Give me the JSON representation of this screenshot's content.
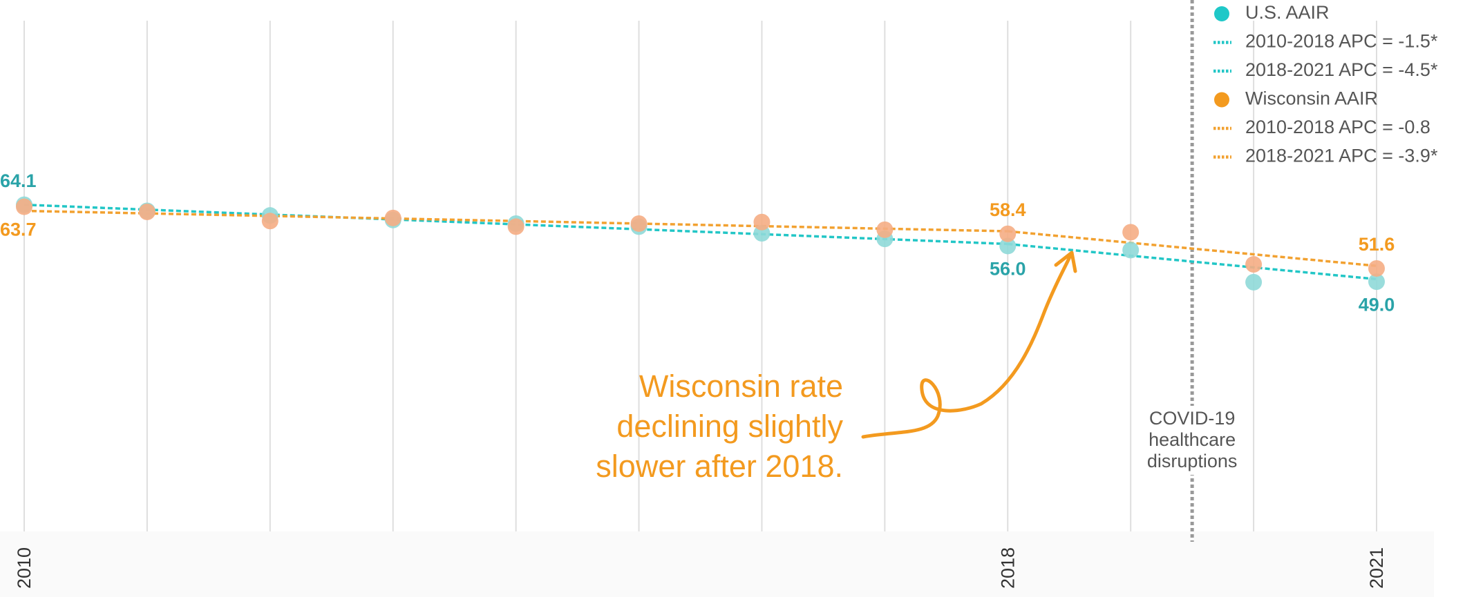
{
  "chart_data": {
    "type": "line",
    "x": [
      2010,
      2011,
      2012,
      2013,
      2014,
      2015,
      2016,
      2017,
      2018,
      2019,
      2020,
      2021
    ],
    "xlim": [
      2010,
      2021
    ],
    "xticks": [
      2010,
      2018,
      2021
    ],
    "ylim": [
      0,
      104
    ],
    "grid": true,
    "legend": "top-right",
    "series": [
      {
        "name": "U.S. AAIR",
        "color": "#8fd9d8",
        "label_color": "#2aa3a8",
        "marker": "circle",
        "values": [
          64.1,
          62.9,
          62.0,
          61.1,
          60.4,
          59.8,
          58.5,
          57.4,
          56.0,
          55.2,
          48.9,
          49.0
        ],
        "value_labels": [
          "64.1",
          null,
          null,
          null,
          null,
          null,
          null,
          null,
          "56.0",
          null,
          null,
          "49.0"
        ]
      },
      {
        "name": "2010-2018 APC = -1.5*",
        "color": "#22c6c6",
        "marker": "dotted",
        "x": [
          2010,
          2018
        ],
        "values": [
          64.1,
          56.4
        ]
      },
      {
        "name": "2018-2021 APC = -4.5*",
        "color": "#22c6c6",
        "marker": "dotted",
        "x": [
          2018,
          2021
        ],
        "values": [
          56.4,
          49.5
        ]
      },
      {
        "name": "Wisconsin AAIR",
        "color": "#f5ad84",
        "label_color": "#f39a1f",
        "marker": "circle",
        "values": [
          63.7,
          62.7,
          60.9,
          61.5,
          59.8,
          60.4,
          60.7,
          59.2,
          58.4,
          58.7,
          52.4,
          51.6
        ],
        "value_labels": [
          "63.7",
          null,
          null,
          null,
          null,
          null,
          null,
          null,
          "58.4",
          null,
          null,
          "51.6"
        ]
      },
      {
        "name": "2010-2018 APC = -0.8",
        "color": "#f2a130",
        "marker": "dotted",
        "x": [
          2010,
          2018
        ],
        "values": [
          62.9,
          58.9
        ]
      },
      {
        "name": "2018-2021 APC = -3.9*",
        "color": "#f2a130",
        "marker": "dotted",
        "x": [
          2018,
          2021
        ],
        "values": [
          58.9,
          52.1
        ]
      }
    ],
    "annotations": [
      {
        "lines": [
          "Wisconsin rate",
          "declining slightly",
          "slower after 2018."
        ],
        "color": "#f39a1f"
      },
      {
        "lines": [
          "COVID-19",
          "healthcare",
          "disruptions"
        ],
        "x": 2019.5,
        "color": "#555555"
      }
    ]
  }
}
